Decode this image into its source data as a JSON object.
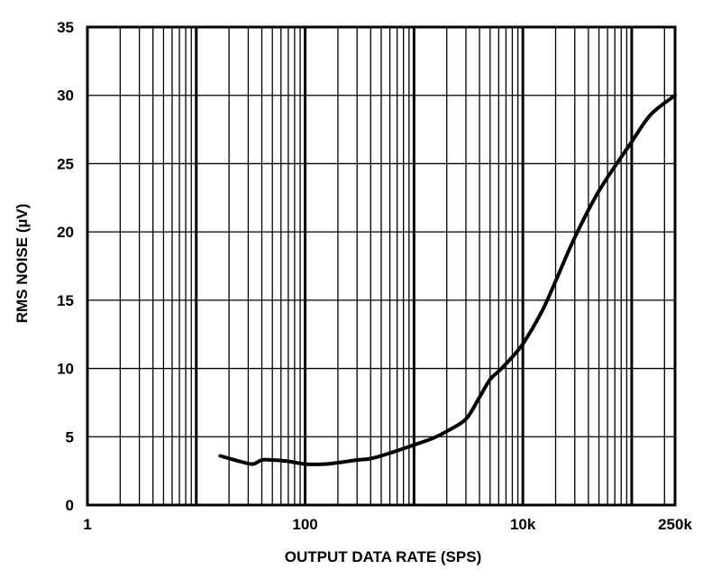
{
  "chart_data": {
    "type": "line",
    "title": "",
    "xlabel": "OUTPUT DATA RATE (SPS)",
    "ylabel": "RMS NOISE (µV)",
    "x_scale": "log",
    "xlim": [
      1,
      250000
    ],
    "ylim": [
      0,
      35
    ],
    "grid": true,
    "x_ticks": [
      {
        "value": 1,
        "label": "1"
      },
      {
        "value": 100,
        "label": "100"
      },
      {
        "value": 10000,
        "label": "10k"
      },
      {
        "value": 250000,
        "label": "250k"
      }
    ],
    "y_ticks": [
      {
        "value": 0,
        "label": "0"
      },
      {
        "value": 5,
        "label": "5"
      },
      {
        "value": 10,
        "label": "10"
      },
      {
        "value": 15,
        "label": "15"
      },
      {
        "value": 20,
        "label": "20"
      },
      {
        "value": 25,
        "label": "25"
      },
      {
        "value": 30,
        "label": "30"
      },
      {
        "value": 35,
        "label": "35"
      }
    ],
    "series": [
      {
        "color": "#000000",
        "points": [
          {
            "x": 16.6,
            "y": 3.6
          },
          {
            "x": 25,
            "y": 3.2
          },
          {
            "x": 33,
            "y": 3.0
          },
          {
            "x": 40,
            "y": 3.3
          },
          {
            "x": 50,
            "y": 3.3
          },
          {
            "x": 70,
            "y": 3.2
          },
          {
            "x": 100,
            "y": 3.0
          },
          {
            "x": 150,
            "y": 3.0
          },
          {
            "x": 200,
            "y": 3.1
          },
          {
            "x": 300,
            "y": 3.3
          },
          {
            "x": 400,
            "y": 3.4
          },
          {
            "x": 600,
            "y": 3.8
          },
          {
            "x": 1000,
            "y": 4.4
          },
          {
            "x": 1500,
            "y": 4.9
          },
          {
            "x": 2000,
            "y": 5.4
          },
          {
            "x": 3000,
            "y": 6.3
          },
          {
            "x": 4000,
            "y": 7.9
          },
          {
            "x": 5000,
            "y": 9.2
          },
          {
            "x": 6000,
            "y": 9.8
          },
          {
            "x": 7500,
            "y": 10.6
          },
          {
            "x": 10000,
            "y": 11.8
          },
          {
            "x": 15000,
            "y": 14.2
          },
          {
            "x": 20000,
            "y": 16.4
          },
          {
            "x": 30000,
            "y": 19.6
          },
          {
            "x": 50000,
            "y": 23.0
          },
          {
            "x": 100000,
            "y": 26.6
          },
          {
            "x": 150000,
            "y": 28.6
          },
          {
            "x": 250000,
            "y": 30.0
          }
        ]
      }
    ]
  }
}
